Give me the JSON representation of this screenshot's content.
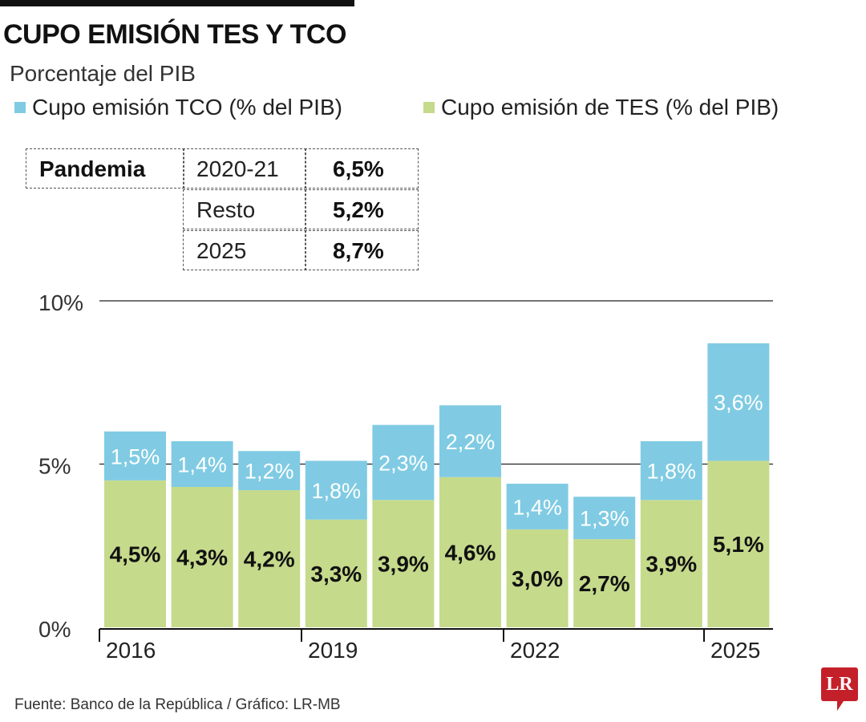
{
  "header": {
    "title": "CUPO EMISIÓN TES Y TCO",
    "subtitle": "Porcentaje del PIB"
  },
  "legend": [
    {
      "label": "Cupo emisión TCO (% del PIB)",
      "color": "#80cbe3"
    },
    {
      "label": "Cupo emisión de TES (% del PIB)",
      "color": "#c6da8c"
    }
  ],
  "summary_table": {
    "group": "Pandemia",
    "rows": [
      {
        "label": "2020-21",
        "value": "6,5%"
      },
      {
        "label": "Resto",
        "value": "5,2%"
      },
      {
        "label": "2025",
        "value": "8,7%"
      }
    ]
  },
  "chart_data": {
    "type": "bar",
    "stacked": true,
    "categories": [
      "2016",
      "2017",
      "2018",
      "2019",
      "2020",
      "2021",
      "2022",
      "2023",
      "2024",
      "2025"
    ],
    "x_tick_labels": [
      "2016",
      "2019",
      "2022",
      "2025"
    ],
    "y_tick_labels": [
      "0%",
      "5%",
      "10%"
    ],
    "ylim": [
      0,
      10
    ],
    "grid": true,
    "legend_placement": "top",
    "series": [
      {
        "name": "Cupo emisión de TES (% del PIB)",
        "color": "#c6da8c",
        "values": [
          4.5,
          4.3,
          4.2,
          3.3,
          3.9,
          4.6,
          3.0,
          2.7,
          3.9,
          5.1
        ],
        "labels": [
          "4,5%",
          "4,3%",
          "4,2%",
          "3,3%",
          "3,9%",
          "4,6%",
          "3,0%",
          "2,7%",
          "3,9%",
          "5,1%"
        ]
      },
      {
        "name": "Cupo emisión TCO (% del PIB)",
        "color": "#80cbe3",
        "values": [
          1.5,
          1.4,
          1.2,
          1.8,
          2.3,
          2.2,
          1.4,
          1.3,
          1.8,
          3.6
        ],
        "labels": [
          "1,5%",
          "1,4%",
          "1,2%",
          "1,8%",
          "2,3%",
          "2,2%",
          "1,4%",
          "1,3%",
          "1,8%",
          "3,6%"
        ]
      }
    ]
  },
  "footer": {
    "source": "Fuente: Banco de la República / Gráfico: LR-MB",
    "logo": "LR"
  }
}
